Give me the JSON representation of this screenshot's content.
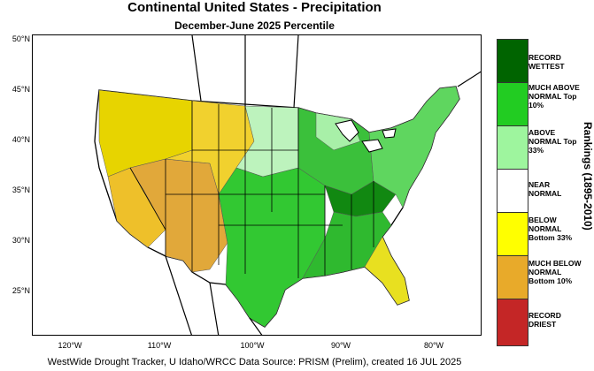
{
  "title": "Continental United States - Precipitation",
  "subtitle": "December-June 2025 Percentile",
  "footer": "WestWide Drought Tracker, U Idaho/WRCC Data Source: PRISM (Prelim), created 16 JUL 2025",
  "legend": {
    "title": "Rankings (1895-2010)",
    "items": [
      {
        "label": "RECORD WETTEST",
        "color": "#006400"
      },
      {
        "label": "MUCH ABOVE NORMAL Top 10%",
        "color": "#22cc22"
      },
      {
        "label": "ABOVE NORMAL Top 33%",
        "color": "#9ef59e"
      },
      {
        "label": "NEAR NORMAL",
        "color": "#ffffff"
      },
      {
        "label": "BELOW NORMAL Bottom 33%",
        "color": "#ffff00"
      },
      {
        "label": "MUCH BELOW NORMAL Bottom 10%",
        "color": "#e8aa2a"
      },
      {
        "label": "RECORD DRIEST",
        "color": "#c42626"
      }
    ]
  },
  "axes": {
    "lat_labels": [
      "50°N",
      "45°N",
      "40°N",
      "35°N",
      "30°N",
      "25°N"
    ],
    "lon_labels": [
      "120°W",
      "110°W",
      "100°W",
      "90°W",
      "80°W"
    ]
  }
}
